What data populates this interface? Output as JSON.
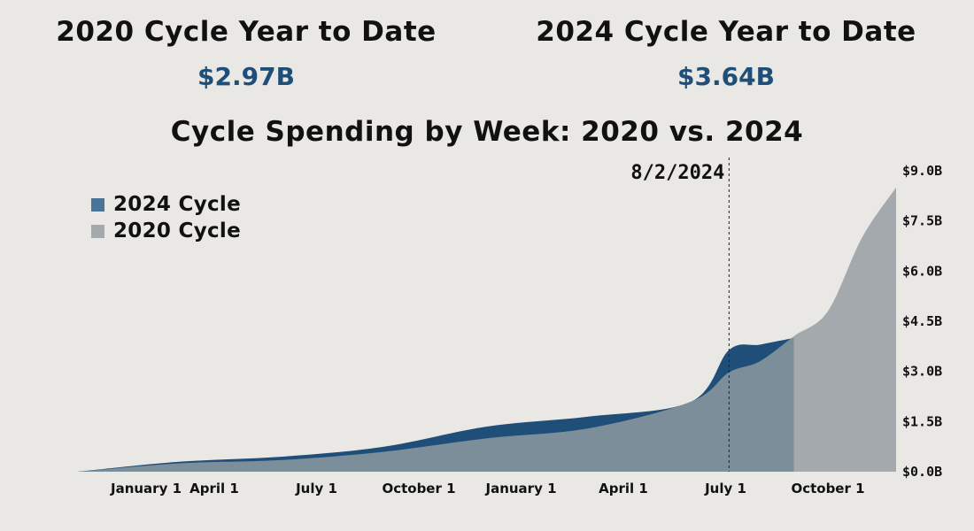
{
  "kpis": [
    {
      "title": "2020 Cycle Year to Date",
      "value": "$2.97B"
    },
    {
      "title": "2024 Cycle Year to Date",
      "value": "$3.64B"
    }
  ],
  "colors": {
    "series_2024": "#1f4e79",
    "series_2020": "#a3a9ad",
    "overlap": "#7b8e9a",
    "legend_2024": "#4a7599",
    "kpi_value": "#1f4e79",
    "background": "#e9e8e4"
  },
  "chart_data": {
    "type": "area",
    "title": "Cycle Spending by Week: 2020 vs. 2024",
    "x_unit": "months since start of cycle",
    "x": [
      0,
      3,
      6,
      9,
      12,
      15,
      18,
      19.1,
      20,
      21,
      22,
      23,
      24
    ],
    "series": [
      {
        "name": "2024 Cycle",
        "values": [
          0.0,
          0.3,
          0.45,
          0.75,
          1.35,
          1.65,
          2.1,
          3.64,
          3.8,
          4.0,
          null,
          null,
          null
        ]
      },
      {
        "name": "2020 Cycle",
        "values": [
          0.0,
          0.25,
          0.35,
          0.6,
          1.0,
          1.3,
          2.1,
          2.97,
          3.3,
          4.05,
          4.8,
          7.0,
          8.5
        ]
      }
    ],
    "x_ticks": [
      {
        "label": "January 1",
        "x": 2
      },
      {
        "label": "April 1",
        "x": 4
      },
      {
        "label": "July 1",
        "x": 7
      },
      {
        "label": "October 1",
        "x": 10
      },
      {
        "label": "January 1",
        "x": 13
      },
      {
        "label": "April 1",
        "x": 16
      },
      {
        "label": "July 1",
        "x": 19
      },
      {
        "label": "October 1",
        "x": 22
      }
    ],
    "y_ticks": [
      "$0.0B",
      "$1.5B",
      "$3.0B",
      "$4.5B",
      "$6.0B",
      "$7.5B",
      "$9.0B"
    ],
    "ylim": [
      0,
      9
    ],
    "marker": {
      "label": "8/2/2024",
      "x": 19.1
    },
    "y_axis_side": "right",
    "legend_position": "top-left",
    "grid": false
  }
}
